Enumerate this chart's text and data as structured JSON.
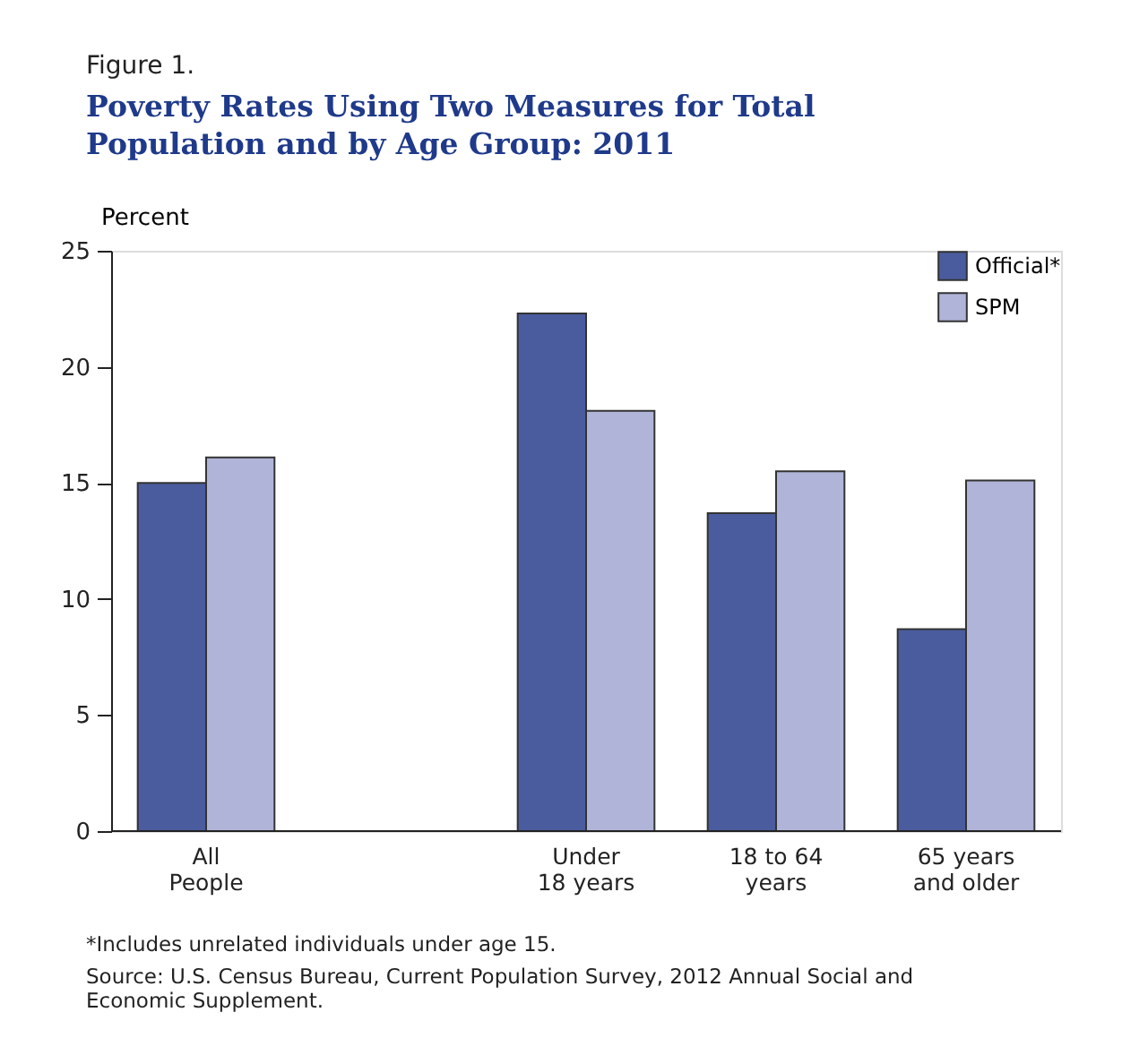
{
  "chart_data": {
    "type": "bar",
    "title": "Poverty Rates Using Two Measures for Total\nPopulation and by Age Group: 2011",
    "subtitle": "Figure 1.",
    "ylabel": "Percent",
    "categories": [
      "All\nPeople",
      null,
      "Under\n18 years",
      "18 to 64\nyears",
      "65 years\nand older"
    ],
    "series": [
      {
        "name": "Official*",
        "color": "#4a5c9e",
        "values": [
          15.0,
          null,
          22.3,
          13.7,
          8.7
        ]
      },
      {
        "name": "SPM",
        "color": "#b0b4d8",
        "values": [
          16.1,
          null,
          18.1,
          15.5,
          15.1
        ]
      }
    ],
    "ylim": [
      0,
      25
    ],
    "yticks": [
      0,
      5,
      10,
      15,
      20,
      25
    ],
    "grid": false,
    "legend": "top right",
    "annotations": [
      "*Includes unrelated individuals under age 15.",
      "Source: U.S. Census Bureau, Current Population Survey, 2012 Annual Social and\nEconomic Supplement."
    ]
  }
}
